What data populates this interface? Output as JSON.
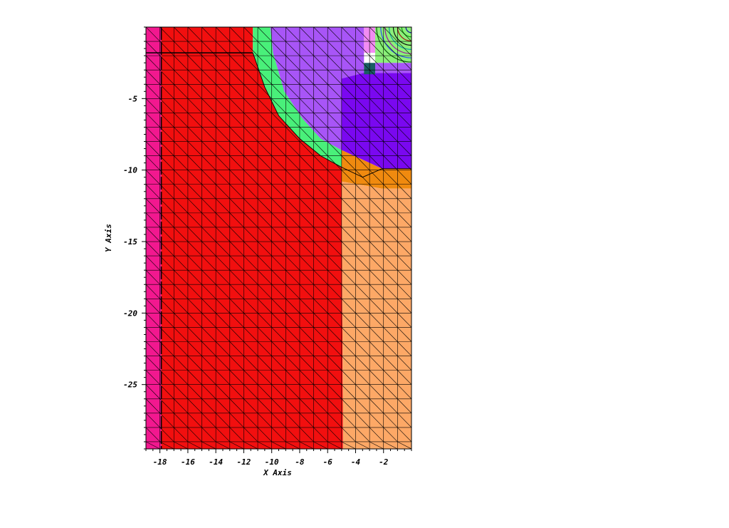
{
  "chart_data": {
    "type": "mesh",
    "xlabel": "X Axis",
    "ylabel": "Y Axis",
    "xlim": [
      -19,
      0
    ],
    "ylim": [
      -29.5,
      0
    ],
    "x_ticks": [
      -18,
      -16,
      -14,
      -12,
      -10,
      -8,
      -6,
      -4,
      -2
    ],
    "y_ticks": [
      -5,
      -10,
      -15,
      -20,
      -25
    ],
    "grid_spacing": 1.0,
    "colors": {
      "magenta": "#f2188f",
      "red": "#f20f0f",
      "green": "#49f07a",
      "light_purple": "#a855f7",
      "purple": "#7a08f0",
      "orange": "#f08a0f",
      "peach": "#fda866",
      "pink": "#f28cf2",
      "teal": "#1a5e63",
      "light_green": "#8cf07a"
    },
    "regions": [
      {
        "name": "left-strip",
        "color": "magenta",
        "polygon": [
          [
            -19,
            0
          ],
          [
            -17.9,
            0
          ],
          [
            -17.9,
            -29.5
          ],
          [
            -19,
            -29.5
          ]
        ]
      },
      {
        "name": "main-domain",
        "color": "red",
        "polygon": [
          [
            -17.9,
            0
          ],
          [
            -11.35,
            0
          ],
          [
            -11.35,
            -1.8
          ],
          [
            -10.5,
            -4.2
          ],
          [
            -9.5,
            -6.2
          ],
          [
            -8,
            -7.8
          ],
          [
            -6.5,
            -9
          ],
          [
            -5,
            -9.8
          ],
          [
            -4.9,
            -29.5
          ],
          [
            -17.9,
            -29.5
          ]
        ]
      },
      {
        "name": "interface-band",
        "color": "green",
        "polygon": [
          [
            -11.35,
            0
          ],
          [
            -10.1,
            0
          ],
          [
            -9.9,
            -1.8
          ],
          [
            -9.1,
            -4.5
          ],
          [
            -7.8,
            -6.4
          ],
          [
            -6.5,
            -7.8
          ],
          [
            -5,
            -8.6
          ],
          [
            -5,
            -9.8
          ],
          [
            -6.5,
            -9
          ],
          [
            -8,
            -7.8
          ],
          [
            -9.5,
            -6.2
          ],
          [
            -10.5,
            -4.2
          ],
          [
            -11.35,
            -1.8
          ]
        ]
      },
      {
        "name": "upper-zone",
        "color": "light_purple",
        "polygon": [
          [
            -10.1,
            0
          ],
          [
            -3.4,
            0
          ],
          [
            -3.4,
            -3.2
          ],
          [
            -5,
            -3.6
          ],
          [
            -5,
            -8.6
          ],
          [
            -6.5,
            -7.8
          ],
          [
            -7.8,
            -6.4
          ],
          [
            -9.1,
            -4.5
          ],
          [
            -9.9,
            -1.8
          ]
        ]
      },
      {
        "name": "core-zone",
        "color": "purple",
        "polygon": [
          [
            -5,
            -3.6
          ],
          [
            -3.4,
            -3.2
          ],
          [
            0,
            -3.2
          ],
          [
            0,
            -9.9
          ],
          [
            -2.1,
            -9.9
          ],
          [
            -5,
            -8.6
          ]
        ]
      },
      {
        "name": "transition-band",
        "color": "orange",
        "polygon": [
          [
            -5,
            -8.6
          ],
          [
            -2.1,
            -9.9
          ],
          [
            0,
            -9.9
          ],
          [
            0,
            -11.3
          ],
          [
            -2.1,
            -11.3
          ],
          [
            -5,
            -10.8
          ]
        ]
      },
      {
        "name": "lower-zone",
        "color": "peach",
        "polygon": [
          [
            -5,
            -10.8
          ],
          [
            -2.1,
            -11.3
          ],
          [
            0,
            -11.3
          ],
          [
            0,
            -29.5
          ],
          [
            -4.9,
            -29.5
          ],
          [
            -5,
            -9.8
          ]
        ]
      },
      {
        "name": "corner-pink",
        "color": "pink",
        "polygon": [
          [
            -3.4,
            0
          ],
          [
            -2.6,
            0
          ],
          [
            -2.6,
            -1.8
          ],
          [
            -3.4,
            -1.8
          ]
        ]
      },
      {
        "name": "corner-green",
        "color": "light_green",
        "polygon": [
          [
            -2.6,
            0
          ],
          [
            0,
            0
          ],
          [
            0,
            -2.5
          ],
          [
            -2.6,
            -2.5
          ]
        ]
      },
      {
        "name": "corner-teal",
        "color": "teal",
        "polygon": [
          [
            -3.4,
            -2.5
          ],
          [
            -2.6,
            -2.5
          ],
          [
            -2.6,
            -3.3
          ],
          [
            -3.4,
            -3.3
          ]
        ]
      },
      {
        "name": "corner-lilac",
        "color": "light_purple",
        "polygon": [
          [
            -2.6,
            -2.5
          ],
          [
            0,
            -2.5
          ],
          [
            0,
            -3.2
          ],
          [
            -2.6,
            -3.2
          ]
        ]
      }
    ],
    "rings": {
      "center": [
        0,
        0
      ],
      "radii": [
        0.4,
        0.7,
        1.0,
        1.3,
        1.6,
        1.9,
        2.2,
        2.5
      ],
      "colors": [
        "#1010a0",
        "#10a010",
        "#a01010",
        "#101010",
        "#10a0a0",
        "#a010a0",
        "#3050f0",
        "#106010"
      ]
    },
    "interface_curve": [
      [
        -11.35,
        -1.8
      ],
      [
        -10.5,
        -4.2
      ],
      [
        -9.5,
        -6.2
      ],
      [
        -8,
        -7.8
      ],
      [
        -6.5,
        -9
      ],
      [
        -5,
        -9.8
      ],
      [
        -3.5,
        -10.5
      ],
      [
        -2.1,
        -9.9
      ],
      [
        0,
        -9.9
      ]
    ]
  }
}
